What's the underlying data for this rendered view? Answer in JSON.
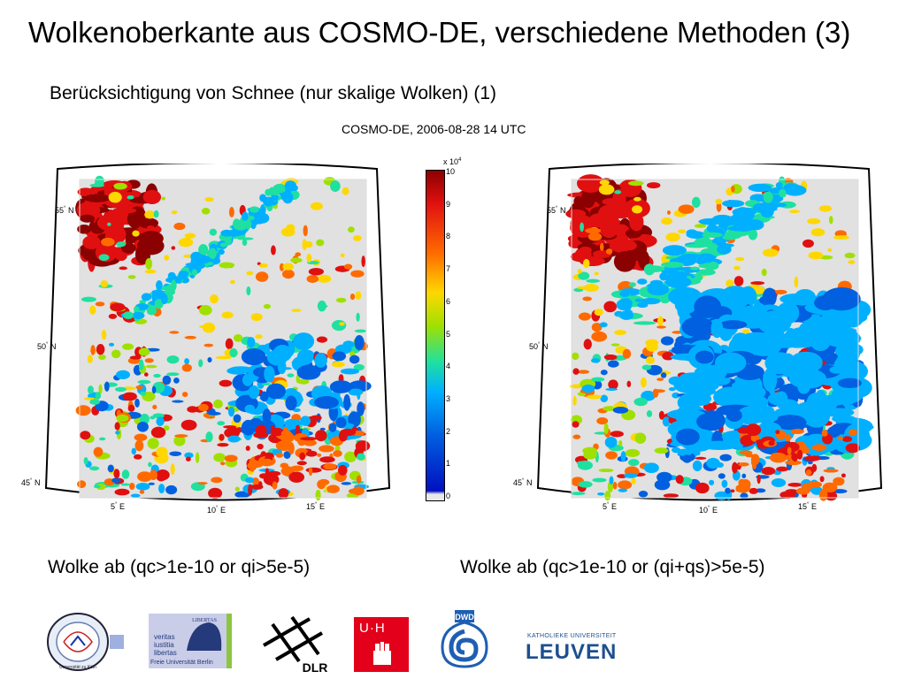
{
  "slide": {
    "title": "Wolkenoberkante aus COSMO-DE, verschiedene Methoden (3)",
    "subtitle": "Berücksichtigung von Schnee (nur skalige Wolken) (1)",
    "run_label": "COSMO-DE, 2006-08-28 14 UTC"
  },
  "maps": [
    {
      "caption": "Wolke ab (qc>1e-10 or qi>5e-5)",
      "lat_labels": [
        "55",
        "50",
        "45"
      ],
      "lon_labels": [
        "5",
        "10",
        "15"
      ],
      "lat_suffix": "N",
      "lon_suffix": "E"
    },
    {
      "caption": "Wolke ab (qc>1e-10 or (qi+qs)>5e-5)",
      "lat_labels": [
        "55",
        "50",
        "45"
      ],
      "lon_labels": [
        "5",
        "10",
        "15"
      ],
      "lat_suffix": "N",
      "lon_suffix": "E"
    }
  ],
  "colorbar": {
    "multiplier": "x 10",
    "exponent": "4",
    "ticks": [
      "10",
      "9",
      "8",
      "7",
      "6",
      "5",
      "4",
      "3",
      "2",
      "1",
      "0"
    ],
    "colors": [
      "#8b0000",
      "#e01010",
      "#ff6a00",
      "#ffd700",
      "#a0e000",
      "#20e0a0",
      "#00b0ff",
      "#0060e0",
      "#0010c0"
    ]
  },
  "logos": {
    "cologne": "Universität zu Köln",
    "fu_top": "LIBERTAS",
    "fu_motto": [
      "veritas",
      "iustitia",
      "libertas"
    ],
    "fu_name": "Freie Universität Berlin",
    "dlr": "DLR",
    "uhh": "U·H",
    "dwd": "DWD",
    "leuven_top": "KATHOLIEKE UNIVERSITEIT",
    "leuven": "LEUVEN"
  }
}
